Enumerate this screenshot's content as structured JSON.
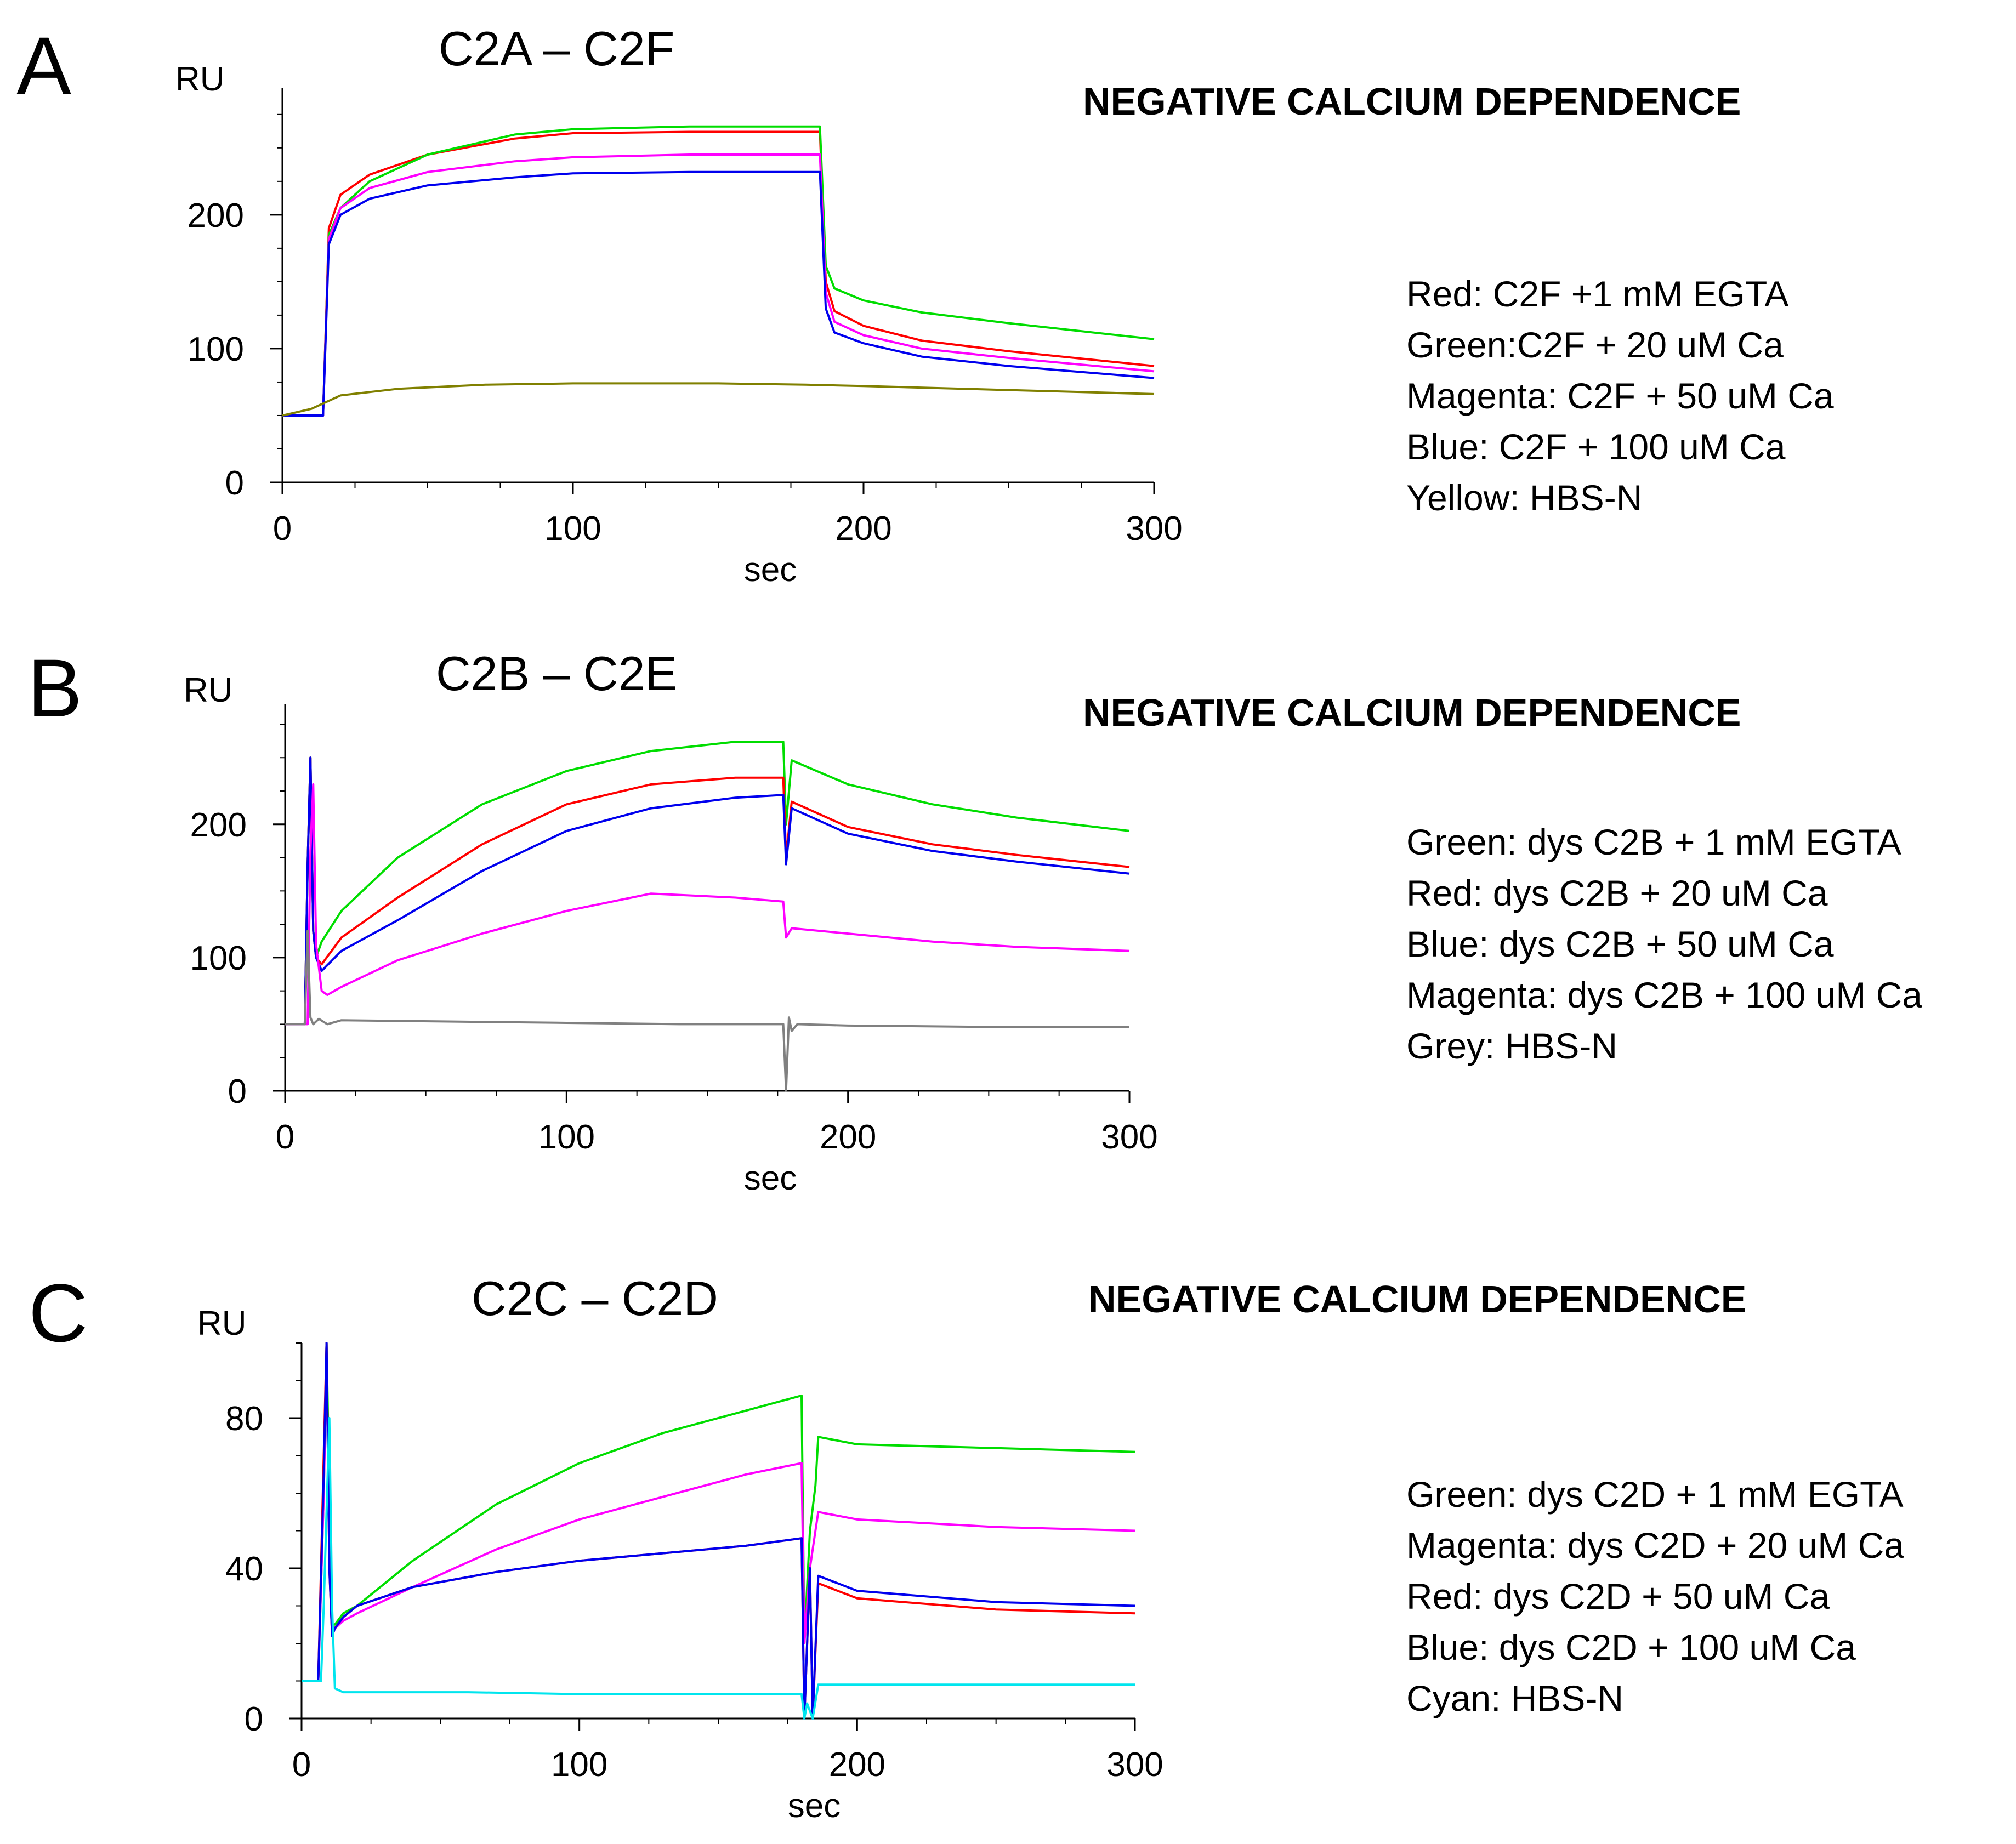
{
  "colors": {
    "red": "#ff0000",
    "green": "#00dd00",
    "magenta": "#ff00ff",
    "blue": "#0000ee",
    "yellow": "#808000",
    "grey": "#808080",
    "cyan": "#00e5ee",
    "axis": "#000000"
  },
  "panels": [
    {
      "letter": "A",
      "heading": "NEGATIVE CALCIUM DEPENDENCE",
      "legend": [
        "Red: C2F +1 mM EGTA",
        "Green:C2F + 20 uM Ca",
        "Magenta: C2F + 50 uM Ca",
        "Blue: C2F + 100 uM Ca",
        "Yellow: HBS-N"
      ]
    },
    {
      "letter": "B",
      "heading": "NEGATIVE CALCIUM DEPENDENCE",
      "legend": [
        "Green: dys C2B + 1 mM EGTA",
        "Red: dys C2B + 20 uM Ca",
        "Blue: dys C2B + 50 uM Ca",
        "Magenta: dys C2B + 100 uM Ca",
        "Grey: HBS-N"
      ]
    },
    {
      "letter": "C",
      "heading": "NEGATIVE CALCIUM DEPENDENCE",
      "legend": [
        "Green: dys C2D + 1 mM EGTA",
        "Magenta: dys C2D + 20 uM Ca",
        "Red: dys C2D + 50 uM Ca",
        "Blue: dys C2D + 100 uM Ca",
        "Cyan: HBS-N"
      ]
    }
  ],
  "chart_data": [
    {
      "type": "line",
      "title": "C2A – C2F",
      "xlabel": "sec",
      "ylabel": "RU",
      "xlim": [
        0,
        300
      ],
      "ylim": [
        0,
        295
      ],
      "xticks": [
        0,
        100,
        200,
        300
      ],
      "yticks": [
        0,
        100,
        200
      ],
      "series": [
        {
          "name": "Red",
          "color": "red",
          "x": [
            0,
            14,
            16,
            20,
            30,
            50,
            80,
            100,
            140,
            170,
            185,
            187,
            190,
            200,
            220,
            250,
            300
          ],
          "y": [
            50,
            50,
            190,
            215,
            230,
            245,
            257,
            261,
            262,
            262,
            262,
            150,
            128,
            117,
            106,
            98,
            87
          ]
        },
        {
          "name": "Green",
          "color": "green",
          "x": [
            0,
            14,
            16,
            20,
            30,
            50,
            80,
            100,
            140,
            170,
            185,
            187,
            190,
            200,
            220,
            250,
            300
          ],
          "y": [
            50,
            50,
            185,
            205,
            225,
            245,
            260,
            264,
            266,
            266,
            266,
            162,
            145,
            136,
            127,
            119,
            107
          ]
        },
        {
          "name": "Magenta",
          "color": "magenta",
          "x": [
            0,
            14,
            16,
            20,
            30,
            50,
            80,
            100,
            140,
            170,
            185,
            187,
            190,
            200,
            220,
            250,
            300
          ],
          "y": [
            50,
            50,
            182,
            205,
            220,
            232,
            240,
            243,
            245,
            245,
            245,
            142,
            120,
            110,
            100,
            93,
            83
          ]
        },
        {
          "name": "Blue",
          "color": "blue",
          "x": [
            0,
            14,
            16,
            20,
            30,
            50,
            80,
            100,
            140,
            170,
            185,
            187,
            190,
            200,
            220,
            250,
            300
          ],
          "y": [
            50,
            50,
            178,
            200,
            212,
            222,
            228,
            231,
            232,
            232,
            232,
            130,
            112,
            104,
            94,
            87,
            78
          ]
        },
        {
          "name": "Yellow",
          "color": "yellow",
          "x": [
            0,
            10,
            20,
            40,
            70,
            100,
            150,
            180,
            200,
            250,
            300
          ],
          "y": [
            50,
            55,
            65,
            70,
            73,
            74,
            74,
            73,
            72,
            69,
            66
          ]
        }
      ]
    },
    {
      "type": "line",
      "title": "C2B – C2E",
      "xlabel": "sec",
      "ylabel": "RU",
      "xlim": [
        0,
        300
      ],
      "ylim": [
        0,
        290
      ],
      "xticks": [
        0,
        100,
        200,
        300
      ],
      "yticks": [
        0,
        100,
        200
      ],
      "series": [
        {
          "name": "Green",
          "color": "green",
          "x": [
            0,
            7,
            8,
            9,
            10,
            11,
            13,
            20,
            40,
            70,
            100,
            130,
            160,
            177,
            178,
            180,
            200,
            230,
            260,
            300
          ],
          "y": [
            50,
            50,
            170,
            250,
            120,
            100,
            112,
            135,
            175,
            215,
            240,
            255,
            262,
            262,
            200,
            248,
            230,
            215,
            205,
            195
          ]
        },
        {
          "name": "Red",
          "color": "red",
          "x": [
            0,
            7,
            8,
            9,
            10,
            11,
            13,
            20,
            40,
            70,
            100,
            130,
            160,
            177,
            178,
            180,
            200,
            230,
            260,
            300
          ],
          "y": [
            50,
            50,
            170,
            250,
            120,
            100,
            95,
            115,
            145,
            185,
            215,
            230,
            235,
            235,
            175,
            217,
            198,
            185,
            177,
            168
          ]
        },
        {
          "name": "Blue",
          "color": "blue",
          "x": [
            0,
            7,
            8,
            9,
            10,
            11,
            13,
            20,
            40,
            70,
            100,
            130,
            160,
            177,
            178,
            180,
            200,
            230,
            260,
            300
          ],
          "y": [
            50,
            50,
            170,
            250,
            120,
            100,
            90,
            105,
            128,
            165,
            195,
            212,
            220,
            222,
            170,
            212,
            193,
            180,
            172,
            163
          ]
        },
        {
          "name": "Magenta",
          "color": "magenta",
          "x": [
            0,
            8,
            9,
            10,
            11,
            13,
            15,
            20,
            40,
            70,
            100,
            130,
            160,
            177,
            178,
            180,
            200,
            230,
            260,
            300
          ],
          "y": [
            50,
            50,
            180,
            230,
            110,
            75,
            72,
            78,
            98,
            118,
            135,
            148,
            145,
            142,
            115,
            122,
            118,
            112,
            108,
            105
          ]
        },
        {
          "name": "Grey",
          "color": "grey",
          "x": [
            0,
            7,
            8,
            9,
            10,
            12,
            15,
            20,
            60,
            100,
            140,
            177,
            178,
            179,
            180,
            182,
            200,
            250,
            300
          ],
          "y": [
            50,
            50,
            120,
            55,
            50,
            54,
            50,
            53,
            52,
            51,
            50,
            50,
            0,
            55,
            45,
            50,
            49,
            48,
            48
          ]
        }
      ]
    },
    {
      "type": "line",
      "title": "C2C – C2D",
      "xlabel": "sec",
      "ylabel": "RU",
      "xlim": [
        0,
        300
      ],
      "ylim": [
        0,
        100
      ],
      "xticks": [
        0,
        100,
        200,
        300
      ],
      "yticks": [
        0,
        40,
        80
      ],
      "series": [
        {
          "name": "Green",
          "color": "green",
          "x": [
            0,
            6,
            8,
            9,
            10,
            11,
            12,
            15,
            20,
            40,
            70,
            100,
            130,
            160,
            180,
            181,
            183,
            185,
            186,
            200,
            250,
            300
          ],
          "y": [
            10,
            10,
            60,
            100,
            60,
            25,
            25,
            28,
            30,
            42,
            57,
            68,
            76,
            82,
            86,
            20,
            50,
            62,
            75,
            73,
            72,
            71
          ]
        },
        {
          "name": "Magenta",
          "color": "magenta",
          "x": [
            0,
            6,
            8,
            9,
            10,
            11,
            12,
            15,
            20,
            40,
            70,
            100,
            130,
            160,
            180,
            181,
            183,
            185,
            186,
            200,
            250,
            300
          ],
          "y": [
            10,
            10,
            60,
            95,
            50,
            25,
            24,
            26,
            28,
            35,
            45,
            53,
            59,
            65,
            68,
            20,
            40,
            50,
            55,
            53,
            51,
            50
          ]
        },
        {
          "name": "Red",
          "color": "red",
          "x": [
            0,
            6,
            8,
            9,
            10,
            11,
            12,
            15,
            20,
            40,
            70,
            100,
            130,
            160,
            180,
            181,
            183,
            184,
            186,
            200,
            250,
            300
          ],
          "y": [
            10,
            10,
            70,
            100,
            40,
            22,
            24,
            27,
            30,
            35,
            39,
            42,
            44,
            46,
            48,
            0,
            40,
            0,
            36,
            32,
            29,
            28
          ]
        },
        {
          "name": "Blue",
          "color": "blue",
          "x": [
            0,
            6,
            8,
            9,
            10,
            11,
            12,
            15,
            20,
            40,
            70,
            100,
            130,
            160,
            180,
            181,
            183,
            184,
            186,
            200,
            250,
            300
          ],
          "y": [
            10,
            10,
            65,
            100,
            40,
            22,
            24,
            27,
            30,
            35,
            39,
            42,
            44,
            46,
            48,
            0,
            40,
            0,
            38,
            34,
            31,
            30
          ]
        },
        {
          "name": "Cyan",
          "color": "cyan",
          "x": [
            0,
            7,
            8,
            10,
            11,
            12,
            15,
            20,
            60,
            100,
            140,
            180,
            181,
            182,
            184,
            186,
            200,
            250,
            300
          ],
          "y": [
            10,
            10,
            30,
            80,
            30,
            8,
            7,
            7,
            7,
            6.5,
            6.5,
            6.5,
            0,
            4,
            0,
            9,
            9,
            9,
            9
          ]
        }
      ]
    }
  ]
}
